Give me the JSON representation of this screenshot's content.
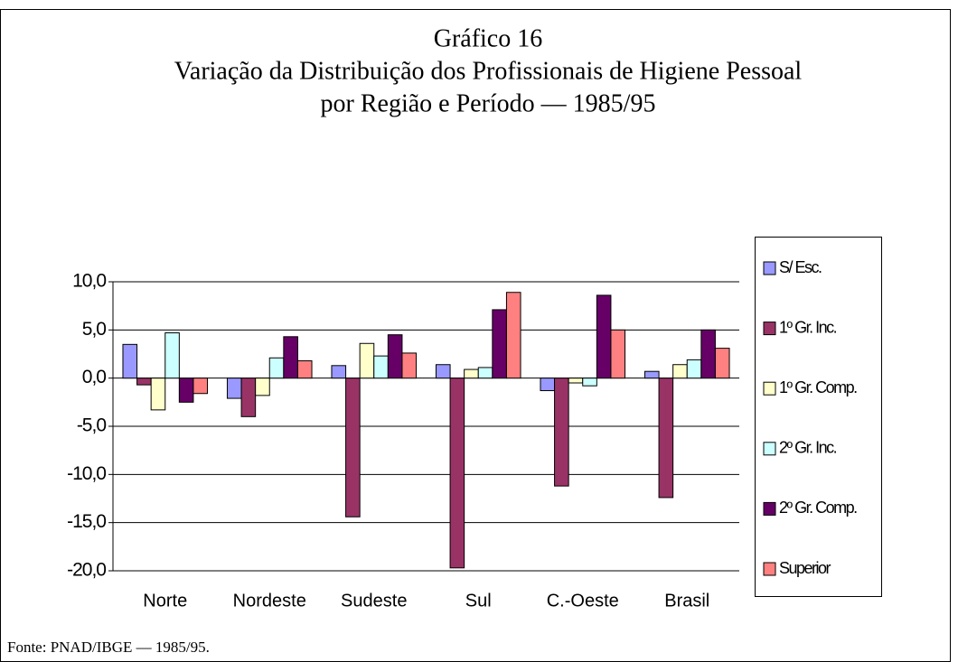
{
  "chart_data": {
    "type": "bar",
    "title": [
      "Gráfico 16",
      "Variação da Distribuição dos Profissionais de Higiene Pessoal",
      "por Região e Período — 1985/95"
    ],
    "source": "Fonte: PNAD/IBGE — 1985/95.",
    "categories": [
      "Norte",
      "Nordeste",
      "Sudeste",
      "Sul",
      "C.-Oeste",
      "Brasil"
    ],
    "series": [
      {
        "name": "S/ Esc.",
        "color": "#9999ff",
        "values": [
          3.5,
          -2.1,
          1.3,
          1.4,
          -1.3,
          0.7
        ]
      },
      {
        "name": "1º Gr. Inc.",
        "color": "#993366",
        "values": [
          -0.7,
          -4.0,
          -14.4,
          -19.7,
          -11.2,
          -12.4
        ]
      },
      {
        "name": "1º Gr. Comp.",
        "color": "#ffffcc",
        "values": [
          -3.3,
          -1.8,
          3.6,
          0.9,
          -0.5,
          1.4
        ]
      },
      {
        "name": "2º Gr. Inc.",
        "color": "#ccffff",
        "values": [
          4.7,
          2.1,
          2.3,
          1.1,
          -0.8,
          1.9
        ]
      },
      {
        "name": "2º Gr. Comp.",
        "color": "#660066",
        "values": [
          -2.5,
          4.3,
          4.5,
          7.1,
          8.6,
          5.0
        ]
      },
      {
        "name": "Superior",
        "color": "#ff8080",
        "values": [
          -1.6,
          1.8,
          2.6,
          8.9,
          5.0,
          3.1
        ]
      }
    ],
    "ylim": [
      -20,
      10
    ],
    "yticks": [
      {
        "value": 10,
        "label": "10,0"
      },
      {
        "value": 5,
        "label": "5,0"
      },
      {
        "value": 0,
        "label": "0,0"
      },
      {
        "value": -5,
        "label": "-5,0"
      },
      {
        "value": -10,
        "label": "-10,0"
      },
      {
        "value": -15,
        "label": "-15,0"
      },
      {
        "value": -20,
        "label": "-20,0"
      }
    ],
    "grid": true,
    "legend": "right"
  }
}
